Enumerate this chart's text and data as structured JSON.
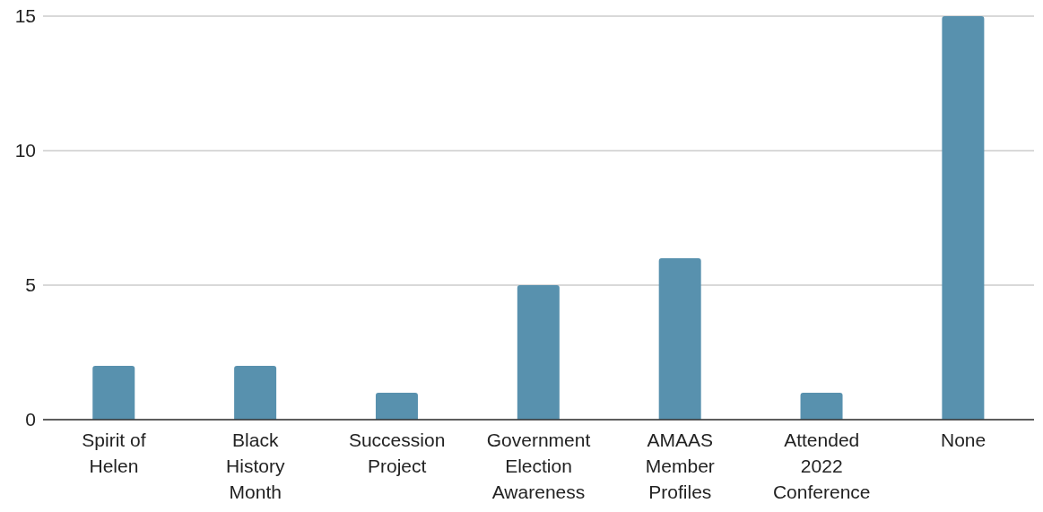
{
  "chart_data": {
    "type": "bar",
    "categories": [
      "Spirit of Helen",
      "Black History Month",
      "Succession Project",
      "Government Election Awareness",
      "AMAAS Member Profiles",
      "Attended 2022 Conference",
      "None"
    ],
    "values": [
      2,
      2,
      1,
      5,
      6,
      1,
      15
    ],
    "color": "#5891ae",
    "ylim": [
      0,
      15
    ],
    "yticks": [
      0,
      5,
      10,
      15
    ],
    "grid": "y"
  }
}
